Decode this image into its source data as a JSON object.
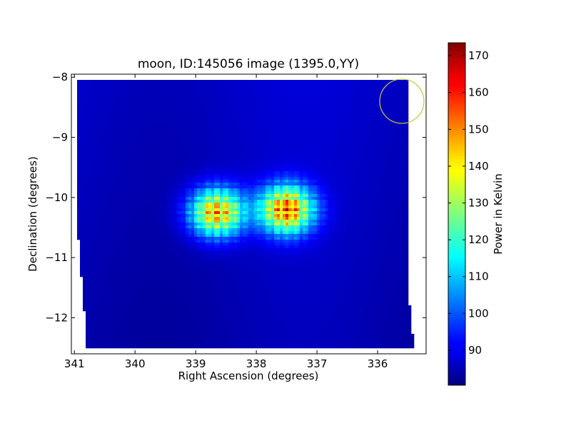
{
  "chart_data": {
    "type": "heatmap",
    "title": "moon, ID:145056 image (1395.0,YY)",
    "xlabel": "Right Ascension (degrees)",
    "ylabel": "Declination (degrees)",
    "xlim": [
      341.05,
      335.2
    ],
    "ylim": [
      -12.6,
      -7.95
    ],
    "x_axis_inverted": true,
    "x_ticks": [
      341,
      340,
      339,
      338,
      337,
      336
    ],
    "x_tick_labels": [
      "341",
      "340",
      "339",
      "338",
      "337",
      "336"
    ],
    "y_ticks": [
      -8,
      -9,
      -10,
      -11,
      -12
    ],
    "y_tick_labels": [
      "−8",
      "−9",
      "−10",
      "−11",
      "−12"
    ],
    "colorbar": {
      "label": "Power in Kelvin",
      "range": [
        80.5,
        173.5
      ],
      "ticks": [
        90,
        100,
        110,
        120,
        130,
        140,
        150,
        160,
        170
      ],
      "tick_labels": [
        "90",
        "100",
        "110",
        "120",
        "130",
        "140",
        "150",
        "160",
        "170"
      ],
      "colormap": "jet"
    },
    "background_level": 86,
    "sources": [
      {
        "ra": 338.65,
        "dec": -10.25,
        "peak": 165
      },
      {
        "ra": 337.5,
        "dec": -10.2,
        "peak": 172
      }
    ],
    "beam_marker": {
      "ra": 335.6,
      "dec": -8.4,
      "color": "#c8c832"
    },
    "grid": false
  }
}
